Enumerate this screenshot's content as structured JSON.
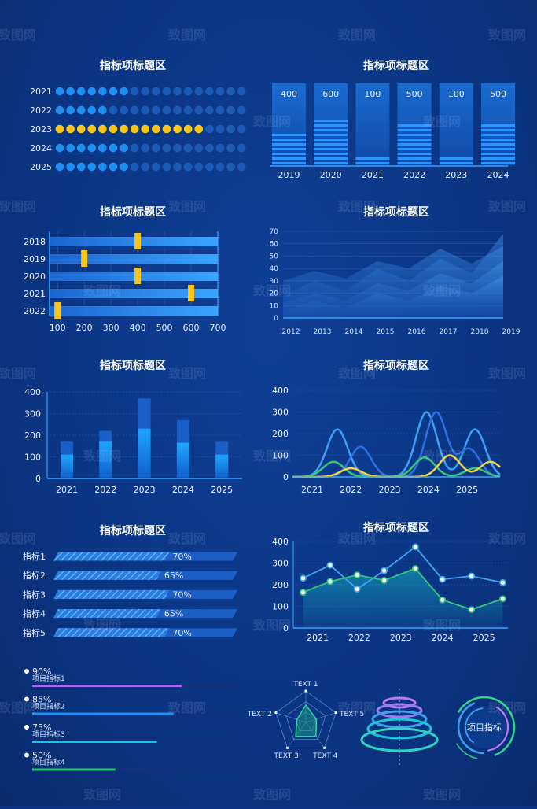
{
  "panel_title": "指标项标题区",
  "chart_data": [
    {
      "id": "dots",
      "type": "pictorial",
      "title": "指标项标题区",
      "categories": [
        "2021",
        "2022",
        "2023",
        "2024",
        "2025"
      ],
      "filled": [
        7,
        5,
        14,
        7,
        7
      ],
      "total": 18,
      "highlight": "2023",
      "colors": {
        "filled": "#1e8ff0",
        "empty": "#1c5bb5",
        "highlight": "#f7c51b"
      }
    },
    {
      "id": "levelbars",
      "type": "bar",
      "title": "指标项标题区",
      "categories": [
        "2019",
        "2020",
        "2021",
        "2022",
        "2023",
        "2024"
      ],
      "values": [
        400,
        600,
        100,
        500,
        100,
        500
      ],
      "ylim": [
        0,
        1000
      ],
      "label_color": "#f7c51b"
    },
    {
      "id": "markers",
      "type": "bar",
      "title": "指标项标题区",
      "categories": [
        "2018",
        "2019",
        "2020",
        "2021",
        "2022"
      ],
      "values": [
        400,
        200,
        400,
        600,
        100
      ],
      "x_ticks": [
        100,
        200,
        300,
        400,
        500,
        600,
        700
      ],
      "xlim": [
        70,
        700
      ]
    },
    {
      "id": "area",
      "type": "area",
      "title": "指标项标题区",
      "x": [
        "2012",
        "2013",
        "2014",
        "2015",
        "2016",
        "2017",
        "2018",
        "2019"
      ],
      "y_ticks": [
        0,
        10,
        20,
        30,
        40,
        50,
        60,
        70
      ],
      "ylim": [
        0,
        70
      ],
      "series": [
        {
          "values": [
            30,
            38,
            32,
            46,
            40,
            56,
            44,
            58
          ]
        },
        {
          "values": [
            18,
            30,
            22,
            40,
            30,
            48,
            36,
            68
          ]
        },
        {
          "values": [
            12,
            20,
            14,
            28,
            22,
            36,
            28,
            46
          ]
        },
        {
          "values": [
            6,
            14,
            8,
            20,
            14,
            26,
            20,
            34
          ]
        }
      ]
    },
    {
      "id": "stacked",
      "type": "bar",
      "title": "指标项标题区",
      "categories": [
        "2021",
        "2022",
        "2023",
        "2024",
        "2025"
      ],
      "series": [
        {
          "values": [
            110,
            170,
            230,
            165,
            110
          ]
        },
        {
          "values": [
            170,
            220,
            370,
            270,
            170
          ]
        }
      ],
      "y_ticks": [
        0,
        100,
        200,
        300,
        400
      ],
      "ylim": [
        0,
        400
      ]
    },
    {
      "id": "bells",
      "type": "line",
      "title": "指标项标题区",
      "categories": [
        "2021",
        "2022",
        "2023",
        "2024",
        "2025"
      ],
      "y_ticks": [
        0,
        100,
        200,
        300,
        400
      ],
      "ylim": [
        0,
        400
      ],
      "series": [
        {
          "peaks": [
            [
              0.65,
              220
            ],
            [
              2.95,
              300
            ],
            [
              4.2,
              220
            ]
          ],
          "color": "#3fa0f2"
        },
        {
          "peaks": [
            [
              1.25,
              140
            ],
            [
              3.2,
              300
            ],
            [
              4.05,
              130
            ]
          ],
          "color": "#2f6fe0"
        },
        {
          "peaks": [
            [
              0.55,
              70
            ],
            [
              2.9,
              90
            ],
            [
              4.2,
              40
            ]
          ],
          "color": "#38c77a"
        },
        {
          "peaks": [
            [
              1.0,
              40
            ],
            [
              3.55,
              100
            ],
            [
              4.6,
              70
            ]
          ],
          "color": "#f2d545"
        }
      ]
    },
    {
      "id": "percent",
      "type": "bar",
      "title": "指标项标题区",
      "categories": [
        "指标1",
        "指标2",
        "指标3",
        "指标4",
        "指标5"
      ],
      "values": [
        70,
        65,
        70,
        65,
        70
      ],
      "labels": [
        "70%",
        "65%",
        "70%",
        "65%",
        "70%"
      ]
    },
    {
      "id": "twolines",
      "type": "line",
      "title": "指标项标题区",
      "categories": [
        "2021",
        "2022",
        "2023",
        "2024",
        "2025"
      ],
      "y_ticks": [
        0,
        100,
        200,
        300,
        400
      ],
      "ylim": [
        0,
        400
      ],
      "series": [
        {
          "x": [
            2020.65,
            2021.3,
            2021.95,
            2022.6,
            2023.35,
            2024.0,
            2024.7,
            2025.45
          ],
          "values": [
            230,
            290,
            180,
            265,
            375,
            225,
            240,
            210
          ],
          "color": "#3fa5f2"
        },
        {
          "x": [
            2020.65,
            2021.3,
            2021.95,
            2022.6,
            2023.35,
            2024.0,
            2024.7,
            2025.45
          ],
          "values": [
            165,
            215,
            245,
            220,
            275,
            130,
            85,
            135
          ],
          "color": "#32c87a"
        }
      ]
    },
    {
      "id": "progress",
      "type": "bar",
      "items": [
        {
          "pct": "90%",
          "label": "项目指标1",
          "value": 90,
          "color": "#a06ef5"
        },
        {
          "pct": "85%",
          "label": "项目指标2",
          "value": 85,
          "color": "#1f8fff"
        },
        {
          "pct": "75%",
          "label": "项目指标3",
          "value": 75,
          "color": "#1ec4d9"
        },
        {
          "pct": "50%",
          "label": "项目指标4",
          "value": 50,
          "color": "#2ac96b"
        }
      ]
    },
    {
      "id": "radar",
      "type": "radar",
      "axes": [
        "TEXT 1",
        "TEXT 2",
        "TEXT 3",
        "TEXT 4",
        "TEXT 5"
      ]
    }
  ],
  "donut_label": "项目指标",
  "watermark": "致图网"
}
